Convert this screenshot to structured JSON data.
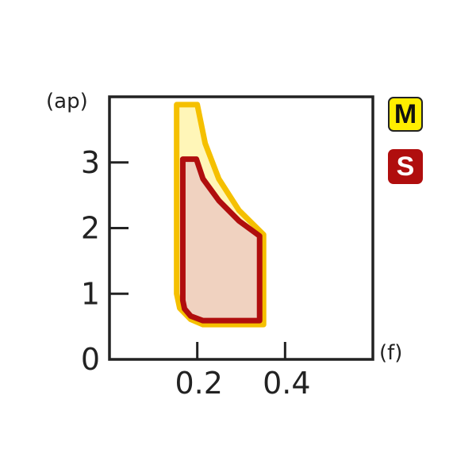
{
  "chart_data": {
    "type": "area",
    "xlabel": "(f)",
    "ylabel": "(ap)",
    "xlim": [
      0,
      0.6
    ],
    "ylim": [
      0,
      4
    ],
    "x_ticks": [
      "0.2",
      "0.4"
    ],
    "x_tick_values": [
      0.2,
      0.4
    ],
    "y_ticks": [
      "0",
      "1",
      "2",
      "3"
    ],
    "y_tick_values": [
      0,
      1,
      2,
      3
    ],
    "grid": false,
    "legend_position": "right",
    "series": [
      {
        "name": "M",
        "fill": "#fff6b8",
        "stroke": "#f5c000",
        "legend_color": "#ffee00",
        "boundary": [
          [
            0.153,
            3.88
          ],
          [
            0.2,
            3.88
          ],
          [
            0.218,
            3.29
          ],
          [
            0.249,
            2.75
          ],
          [
            0.295,
            2.27
          ],
          [
            0.351,
            1.9
          ],
          [
            0.351,
            0.53
          ],
          [
            0.213,
            0.53
          ],
          [
            0.185,
            0.61
          ],
          [
            0.16,
            0.78
          ],
          [
            0.153,
            1.0
          ]
        ]
      },
      {
        "name": "S",
        "fill": "#f0d2c0",
        "stroke": "#b00e0e",
        "legend_color": "#b00e0e",
        "boundary": [
          [
            0.167,
            3.05
          ],
          [
            0.198,
            3.05
          ],
          [
            0.213,
            2.75
          ],
          [
            0.249,
            2.42
          ],
          [
            0.295,
            2.11
          ],
          [
            0.342,
            1.88
          ],
          [
            0.342,
            0.59
          ],
          [
            0.213,
            0.59
          ],
          [
            0.185,
            0.66
          ],
          [
            0.171,
            0.77
          ],
          [
            0.167,
            0.9
          ]
        ]
      }
    ]
  }
}
